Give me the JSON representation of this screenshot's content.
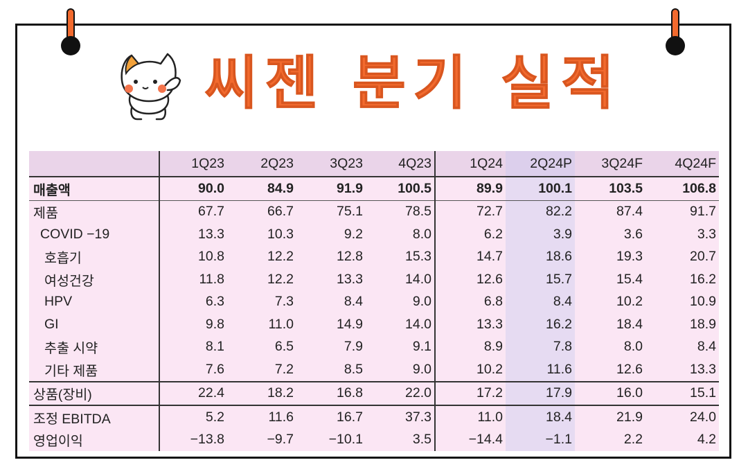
{
  "title": "씨젠 분기 실적",
  "colors": {
    "accent": "#f26a2e",
    "table_bg": "#fbe6f4",
    "highlight_bg": "#e6dbf2"
  },
  "table": {
    "columns": [
      "1Q23",
      "2Q23",
      "3Q23",
      "4Q23",
      "1Q24",
      "2Q24P",
      "3Q24F",
      "4Q24F"
    ],
    "rows": [
      {
        "label": "매출액",
        "values": [
          "90.0",
          "84.9",
          "91.9",
          "100.5",
          "89.9",
          "100.1",
          "103.5",
          "106.8"
        ]
      },
      {
        "label": "제품",
        "values": [
          "67.7",
          "66.7",
          "75.1",
          "78.5",
          "72.7",
          "82.2",
          "87.4",
          "91.7"
        ]
      },
      {
        "label": "COVID −19",
        "values": [
          "13.3",
          "10.3",
          "9.2",
          "8.0",
          "6.2",
          "3.9",
          "3.6",
          "3.3"
        ]
      },
      {
        "label": "호흡기",
        "values": [
          "10.8",
          "12.2",
          "12.8",
          "15.3",
          "14.7",
          "18.6",
          "19.3",
          "20.7"
        ]
      },
      {
        "label": "여성건강",
        "values": [
          "11.8",
          "12.2",
          "13.3",
          "14.0",
          "12.6",
          "15.7",
          "15.4",
          "16.2"
        ]
      },
      {
        "label": "HPV",
        "values": [
          "6.3",
          "7.3",
          "8.4",
          "9.0",
          "6.8",
          "8.4",
          "10.2",
          "10.9"
        ]
      },
      {
        "label": "GI",
        "values": [
          "9.8",
          "11.0",
          "14.9",
          "14.0",
          "13.3",
          "16.2",
          "18.4",
          "18.9"
        ]
      },
      {
        "label": "추출 시약",
        "values": [
          "8.1",
          "6.5",
          "7.9",
          "9.1",
          "8.9",
          "7.8",
          "8.0",
          "8.4"
        ]
      },
      {
        "label": "기타 제품",
        "values": [
          "7.6",
          "7.2",
          "8.5",
          "9.0",
          "10.2",
          "11.6",
          "12.6",
          "13.3"
        ]
      },
      {
        "label": "상품(장비)",
        "values": [
          "22.4",
          "18.2",
          "16.8",
          "22.0",
          "17.2",
          "17.9",
          "16.0",
          "15.1"
        ]
      },
      {
        "label": "조정 EBITDA",
        "values": [
          "5.2",
          "11.6",
          "16.7",
          "37.3",
          "11.0",
          "18.4",
          "21.9",
          "24.0"
        ]
      },
      {
        "label": "영업이익",
        "values": [
          "−13.8",
          "−9.7",
          "−10.1",
          "3.5",
          "−14.4",
          "−1.1",
          "2.2",
          "4.2"
        ]
      }
    ]
  }
}
